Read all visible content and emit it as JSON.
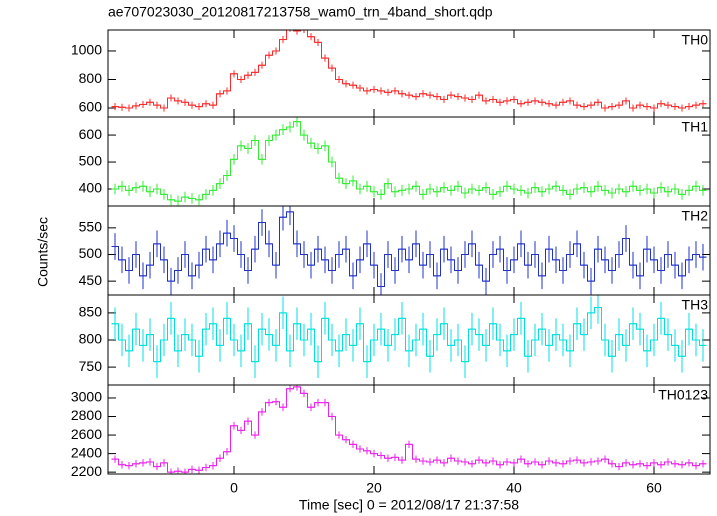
{
  "title": "ae707023030_20120817213758_wam0_trn_4band_short.qdp",
  "ylabel": "Counts/sec",
  "xlabel": "Time [sec] 0 = 2012/08/17 21:37:58",
  "xlim": [
    -18,
    68
  ],
  "xticks": [
    0,
    20,
    40,
    60
  ],
  "x": [
    -17,
    -16,
    -15,
    -14,
    -13,
    -12,
    -11,
    -10,
    -9,
    -8,
    -7,
    -6,
    -5,
    -4,
    -3,
    -2,
    -1,
    0,
    1,
    2,
    3,
    4,
    5,
    6,
    7,
    8,
    9,
    10,
    11,
    12,
    13,
    14,
    15,
    16,
    17,
    18,
    19,
    20,
    21,
    22,
    23,
    24,
    25,
    26,
    27,
    28,
    29,
    30,
    31,
    32,
    33,
    34,
    35,
    36,
    37,
    38,
    39,
    40,
    41,
    42,
    43,
    44,
    45,
    46,
    47,
    48,
    49,
    50,
    51,
    52,
    53,
    54,
    55,
    56,
    57,
    58,
    59,
    60,
    61,
    62,
    63,
    64,
    65,
    66,
    67
  ],
  "chart_data": [
    {
      "type": "line",
      "label": "TH0",
      "color": "#ff2a2a",
      "error": 25,
      "ylim": [
        537,
        1147
      ],
      "yticks": [
        600,
        800,
        1000
      ],
      "values": [
        610,
        605,
        600,
        615,
        625,
        640,
        620,
        600,
        670,
        650,
        640,
        620,
        610,
        630,
        620,
        700,
        720,
        840,
        800,
        830,
        850,
        900,
        970,
        1000,
        1080,
        1160,
        1140,
        1150,
        1100,
        1060,
        950,
        880,
        800,
        770,
        760,
        740,
        720,
        730,
        720,
        710,
        720,
        700,
        690,
        680,
        700,
        690,
        680,
        660,
        690,
        680,
        670,
        660,
        690,
        650,
        660,
        640,
        650,
        660,
        630,
        640,
        650,
        640,
        630,
        620,
        640,
        650,
        620,
        610,
        620,
        640,
        600,
        610,
        620,
        650,
        600,
        620,
        610,
        600,
        630,
        620,
        610,
        600,
        610,
        620,
        630
      ]
    },
    {
      "type": "line",
      "label": "TH1",
      "color": "#33ee33",
      "error": 20,
      "ylim": [
        337,
        667
      ],
      "yticks": [
        400,
        500,
        600
      ],
      "values": [
        400,
        410,
        395,
        405,
        410,
        390,
        400,
        380,
        360,
        355,
        370,
        365,
        360,
        380,
        395,
        420,
        450,
        510,
        560,
        550,
        580,
        510,
        580,
        600,
        620,
        630,
        650,
        600,
        570,
        550,
        560,
        500,
        440,
        420,
        430,
        400,
        410,
        390,
        380,
        420,
        390,
        395,
        400,
        410,
        380,
        400,
        390,
        405,
        395,
        410,
        385,
        400,
        395,
        405,
        380,
        390,
        410,
        400,
        395,
        385,
        405,
        390,
        400,
        410,
        395,
        380,
        400,
        405,
        390,
        410,
        395,
        385,
        400,
        390,
        410,
        395,
        400,
        385,
        405,
        390,
        400,
        380,
        395,
        410,
        395
      ]
    },
    {
      "type": "line",
      "label": "TH2",
      "color": "#2233cc",
      "error": 25,
      "ylim": [
        424,
        591
      ],
      "yticks": [
        450,
        500,
        550
      ],
      "values": [
        515,
        490,
        470,
        500,
        460,
        480,
        520,
        490,
        450,
        470,
        500,
        460,
        480,
        510,
        490,
        520,
        540,
        530,
        500,
        470,
        510,
        560,
        520,
        480,
        570,
        580,
        520,
        500,
        480,
        510,
        490,
        470,
        500,
        510,
        460,
        490,
        520,
        480,
        440,
        500,
        470,
        510,
        490,
        520,
        480,
        500,
        460,
        510,
        490,
        470,
        500,
        520,
        480,
        450,
        500,
        510,
        470,
        490,
        520,
        480,
        500,
        460,
        510,
        490,
        470,
        500,
        520,
        480,
        450,
        510,
        490,
        470,
        500,
        530,
        480,
        460,
        510,
        490,
        470,
        500,
        480,
        460,
        490,
        500,
        495
      ]
    },
    {
      "type": "line",
      "label": "TH3",
      "color": "#00e0e0",
      "error": 30,
      "ylim": [
        717,
        883
      ],
      "yticks": [
        750,
        800,
        850
      ],
      "values": [
        830,
        800,
        780,
        820,
        790,
        810,
        760,
        800,
        840,
        780,
        810,
        800,
        770,
        820,
        830,
        790,
        840,
        800,
        780,
        830,
        760,
        820,
        810,
        790,
        850,
        780,
        830,
        800,
        820,
        760,
        840,
        800,
        780,
        810,
        790,
        830,
        760,
        800,
        820,
        790,
        810,
        840,
        780,
        800,
        820,
        770,
        810,
        830,
        790,
        800,
        760,
        820,
        810,
        790,
        830,
        800,
        780,
        810,
        840,
        770,
        800,
        820,
        790,
        810,
        800,
        780,
        830,
        810,
        850,
        860,
        800,
        770,
        810,
        790,
        830,
        820,
        780,
        800,
        840,
        810,
        790,
        770,
        820,
        800,
        790
      ]
    },
    {
      "type": "line",
      "label": "TH0123",
      "color": "#ee22ee",
      "error": 40,
      "ylim": [
        2180,
        3140
      ],
      "yticks": [
        2200,
        2400,
        2600,
        2800,
        3000
      ],
      "values": [
        2340,
        2280,
        2270,
        2290,
        2300,
        2310,
        2260,
        2300,
        2200,
        2210,
        2200,
        2230,
        2220,
        2250,
        2270,
        2350,
        2420,
        2700,
        2650,
        2750,
        2600,
        2850,
        2950,
        2960,
        2900,
        3100,
        3120,
        3050,
        2900,
        2950,
        2950,
        2800,
        2600,
        2550,
        2500,
        2450,
        2430,
        2400,
        2380,
        2350,
        2360,
        2330,
        2500,
        2340,
        2320,
        2310,
        2330,
        2300,
        2350,
        2320,
        2310,
        2290,
        2330,
        2300,
        2320,
        2280,
        2310,
        2300,
        2340,
        2290,
        2310,
        2280,
        2320,
        2300,
        2290,
        2320,
        2330,
        2300,
        2310,
        2320,
        2340,
        2290,
        2260,
        2300,
        2280,
        2290,
        2270,
        2300,
        2280,
        2310,
        2290,
        2280,
        2300,
        2270,
        2290
      ]
    }
  ]
}
